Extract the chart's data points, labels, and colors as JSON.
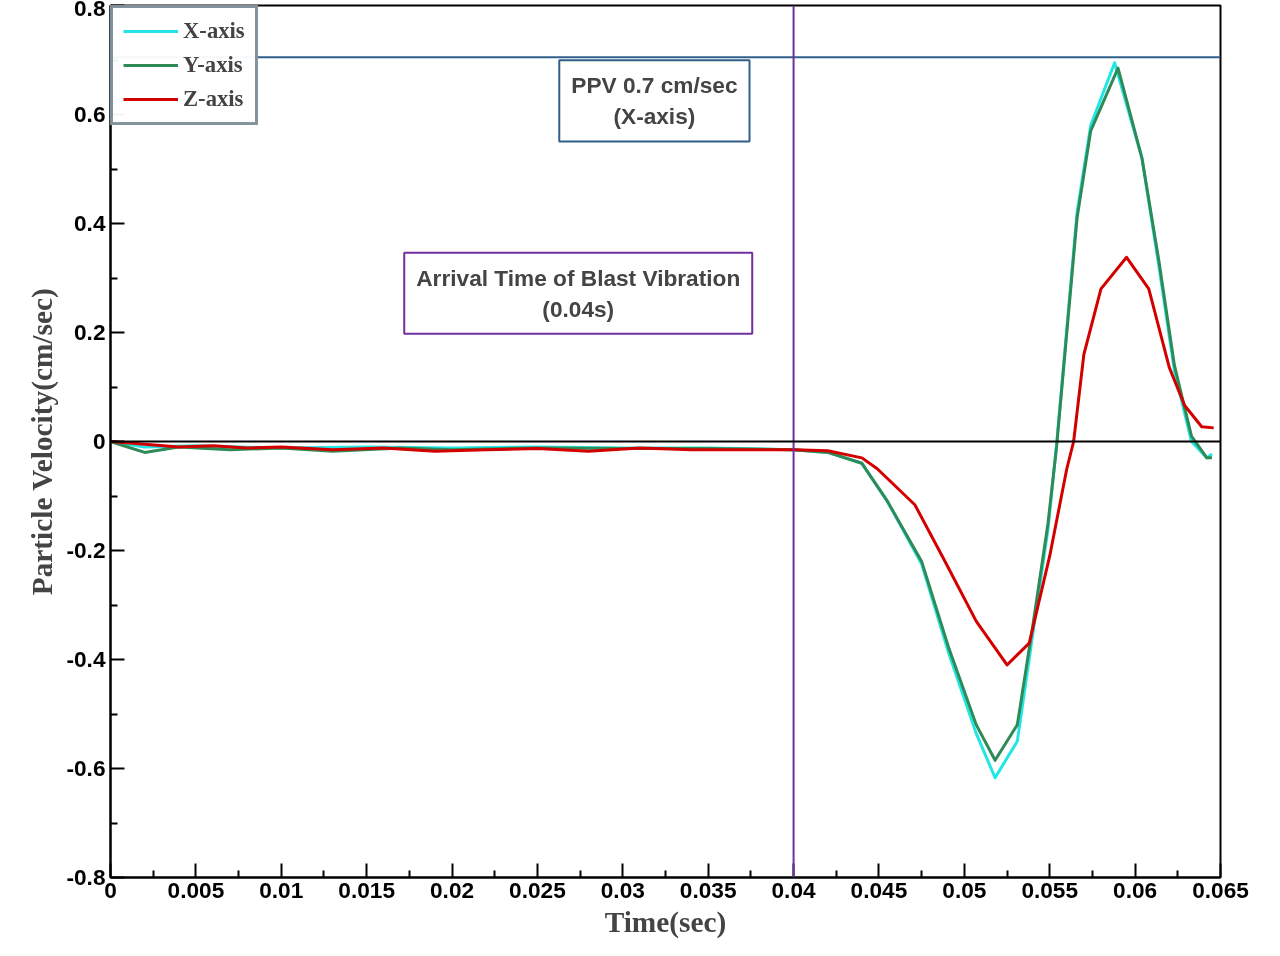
{
  "chart_data": {
    "type": "line",
    "xlabel": "Time(sec)",
    "ylabel": "Particle Velocity(cm/sec)",
    "xlim": [
      0,
      0.065
    ],
    "xticks": [
      0,
      0.005,
      0.01,
      0.015,
      0.02,
      0.025,
      0.03,
      0.035,
      0.04,
      0.045,
      0.05,
      0.055,
      0.06,
      0.065
    ],
    "ylim": [
      -0.8,
      0.8
    ],
    "yticks": [
      -0.8,
      -0.6,
      -0.4,
      -0.2,
      0,
      0.2,
      0.4,
      0.6,
      0.8
    ],
    "grid": false,
    "legend": "top left",
    "line_style": "solid",
    "marker": "none",
    "series": [
      {
        "name": "X-axis",
        "color": "#22e5e5",
        "x": [
          0,
          0.002,
          0.005,
          0.01,
          0.015,
          0.02,
          0.025,
          0.03,
          0.035,
          0.04,
          0.042,
          0.044,
          0.0455,
          0.0475,
          0.0491,
          0.0507,
          0.0518,
          0.0531,
          0.054,
          0.0549,
          0.0554,
          0.0566,
          0.0574,
          0.0588,
          0.0604,
          0.0614,
          0.0623,
          0.0633,
          0.0642,
          0.0645
        ],
        "values": [
          0,
          -0.01,
          -0.008,
          -0.012,
          -0.01,
          -0.012,
          -0.01,
          -0.012,
          -0.012,
          -0.015,
          -0.02,
          -0.04,
          -0.11,
          -0.225,
          -0.39,
          -0.536,
          -0.617,
          -0.55,
          -0.355,
          -0.16,
          -0.006,
          0.42,
          0.58,
          0.695,
          0.52,
          0.32,
          0.13,
          0,
          -0.03,
          -0.023
        ]
      },
      {
        "name": "Y-axis",
        "color": "#2e8b57",
        "x": [
          0,
          0.001,
          0.002,
          0.004,
          0.007,
          0.01,
          0.013,
          0.017,
          0.02,
          0.025,
          0.03,
          0.035,
          0.04,
          0.042,
          0.044,
          0.0455,
          0.0475,
          0.0491,
          0.0507,
          0.0518,
          0.0531,
          0.054,
          0.0549,
          0.0554,
          0.0566,
          0.0574,
          0.059,
          0.0604,
          0.0614,
          0.0623,
          0.0633,
          0.0642,
          0.0645
        ],
        "values": [
          0,
          -0.01,
          -0.02,
          -0.01,
          -0.015,
          -0.012,
          -0.018,
          -0.012,
          -0.015,
          -0.012,
          -0.013,
          -0.013,
          -0.015,
          -0.02,
          -0.04,
          -0.11,
          -0.22,
          -0.38,
          -0.52,
          -0.585,
          -0.52,
          -0.34,
          -0.15,
          -0.01,
          0.41,
          0.57,
          0.685,
          0.52,
          0.33,
          0.14,
          0.01,
          -0.03,
          -0.03
        ]
      },
      {
        "name": "Z-axis",
        "color": "#d40000",
        "x": [
          0,
          0.002,
          0.004,
          0.006,
          0.008,
          0.01,
          0.013,
          0.016,
          0.019,
          0.022,
          0.025,
          0.028,
          0.031,
          0.034,
          0.037,
          0.04,
          0.042,
          0.044,
          0.0449,
          0.0471,
          0.0487,
          0.0507,
          0.0525,
          0.0538,
          0.055,
          0.056,
          0.0564,
          0.057,
          0.058,
          0.0595,
          0.0608,
          0.062,
          0.0629,
          0.0639,
          0.0646
        ],
        "values": [
          0,
          -0.005,
          -0.01,
          -0.008,
          -0.012,
          -0.01,
          -0.015,
          -0.012,
          -0.018,
          -0.015,
          -0.013,
          -0.018,
          -0.012,
          -0.015,
          -0.015,
          -0.015,
          -0.017,
          -0.03,
          -0.05,
          -0.116,
          -0.21,
          -0.33,
          -0.41,
          -0.37,
          -0.21,
          -0.05,
          0,
          0.16,
          0.28,
          0.338,
          0.28,
          0.136,
          0.066,
          0.027,
          0.025
        ]
      }
    ],
    "ref_lines": [
      {
        "axis": "y",
        "value": 0.705,
        "label": "PPV 0.7 cm/sec\n(X-axis)",
        "color": "#2f5f8a"
      },
      {
        "axis": "x",
        "value": 0.04,
        "label": "Arrival Time of Blast Vibration\n(0.04s)",
        "color": "#7030a0"
      },
      {
        "axis": "y",
        "value": 0,
        "label": null,
        "color": "#000000"
      }
    ]
  }
}
